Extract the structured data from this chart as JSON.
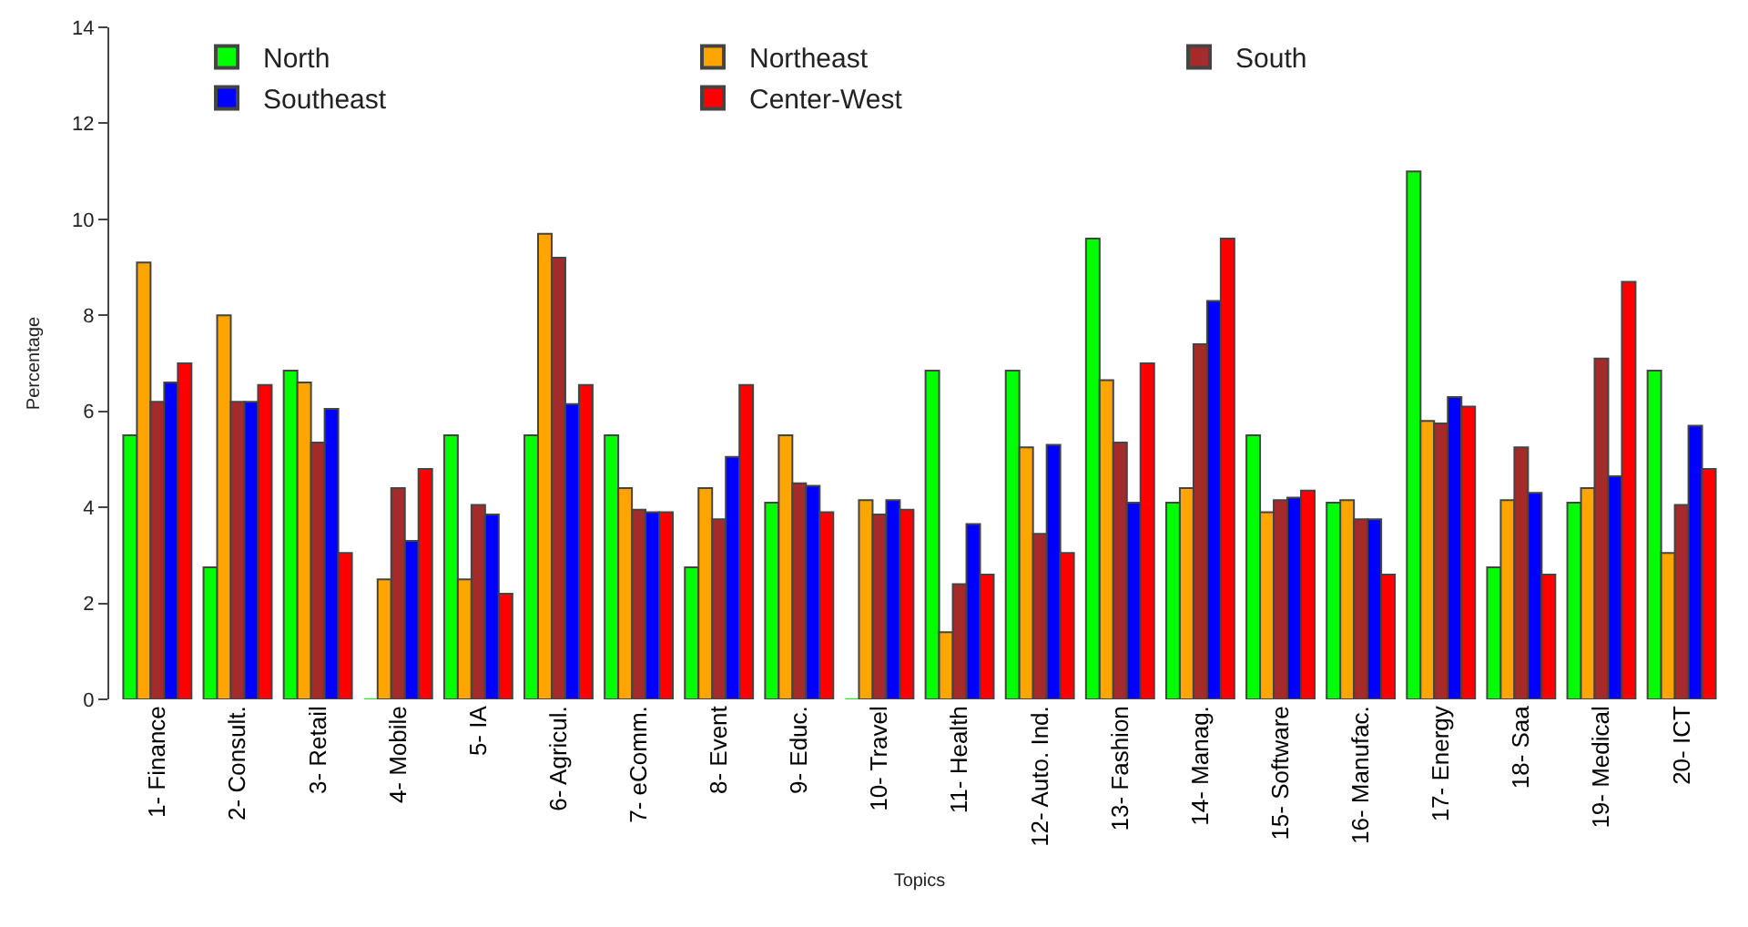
{
  "chart_data": {
    "type": "bar",
    "xlabel": "Topics",
    "ylabel": "Percentage",
    "categories": [
      "1- Finance",
      "2- Consult.",
      "3- Retail",
      "4- Mobile",
      "5- IA",
      "6- Agricul.",
      "7- eComm.",
      "8- Event",
      "9- Educ.",
      "10- Travel",
      "11- Health",
      "12- Auto. Ind.",
      "13- Fashion",
      "14- Manag.",
      "15- Software",
      "16- Manufac.",
      "17- Energy",
      "18- Saa",
      "19- Medical",
      "20- ICT"
    ],
    "series": [
      {
        "name": "North",
        "color": "#00ff00",
        "values": [
          5.5,
          2.75,
          6.85,
          0,
          5.5,
          5.5,
          5.5,
          2.75,
          4.1,
          0,
          6.85,
          6.85,
          9.6,
          4.1,
          5.5,
          4.1,
          11.0,
          2.75,
          4.1,
          6.85
        ]
      },
      {
        "name": "Northeast",
        "color": "#ffa500",
        "values": [
          9.1,
          8.0,
          6.6,
          2.5,
          2.5,
          9.7,
          4.4,
          4.4,
          5.5,
          4.15,
          1.4,
          5.25,
          6.65,
          4.4,
          3.9,
          4.15,
          5.8,
          4.15,
          4.4,
          3.05
        ]
      },
      {
        "name": "South",
        "color": "#a52a2a",
        "values": [
          6.2,
          6.2,
          5.35,
          4.4,
          4.05,
          9.2,
          3.95,
          3.75,
          4.5,
          3.85,
          2.4,
          3.45,
          5.35,
          7.4,
          4.15,
          3.75,
          5.75,
          5.25,
          7.1,
          4.05
        ]
      },
      {
        "name": "Southeast",
        "color": "#0000ff",
        "values": [
          6.6,
          6.2,
          6.05,
          3.3,
          3.85,
          6.15,
          3.9,
          5.05,
          4.45,
          4.15,
          3.65,
          5.3,
          4.1,
          8.3,
          4.2,
          3.75,
          6.3,
          4.3,
          4.65,
          5.7
        ]
      },
      {
        "name": "Center-West",
        "color": "#ff0000",
        "values": [
          7.0,
          6.55,
          3.05,
          4.8,
          2.2,
          6.55,
          3.9,
          6.55,
          3.9,
          3.95,
          2.6,
          3.05,
          7.0,
          9.6,
          4.35,
          2.6,
          6.1,
          2.6,
          8.7,
          4.8
        ]
      }
    ],
    "ylim": [
      0,
      14
    ],
    "yticks": [
      0,
      2,
      4,
      6,
      8,
      10,
      12,
      14
    ],
    "legend": "top"
  }
}
